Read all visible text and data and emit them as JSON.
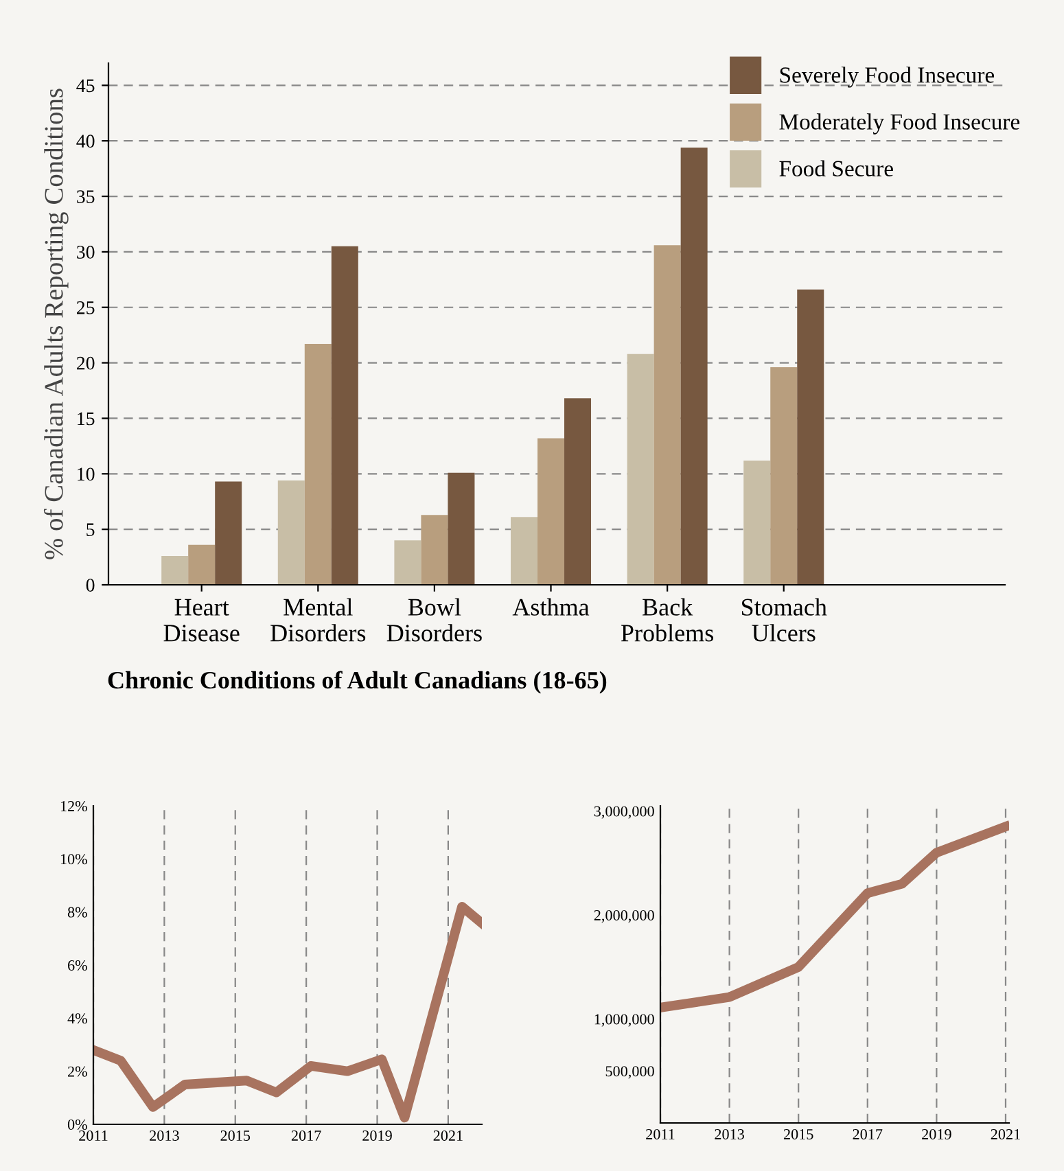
{
  "chart_data": [
    {
      "type": "bar",
      "title": "Chronic Conditions of Adult Canadians (18-65)",
      "ylabel": "% of Canadian Adults Reporting Conditions",
      "categories": [
        "Heart\nDisease",
        "Mental\nDisorders",
        "Bowl\nDisorders",
        "Asthma",
        "Back\nProblems",
        "Stomach\nUlcers"
      ],
      "series": [
        {
          "name": "Food Secure",
          "color": "#c8bea6",
          "values": [
            2.6,
            9.4,
            4.0,
            6.1,
            20.8,
            11.2
          ]
        },
        {
          "name": "Moderately Food Insecure",
          "color": "#b89e7e",
          "values": [
            3.6,
            21.7,
            6.3,
            13.2,
            30.6,
            19.6
          ]
        },
        {
          "name": "Severely Food Insecure",
          "color": "#775840",
          "values": [
            9.3,
            30.5,
            10.1,
            16.8,
            39.4,
            26.6
          ]
        }
      ],
      "ylim": [
        0,
        47
      ],
      "yticks": [
        0,
        5,
        10,
        15,
        20,
        25,
        30,
        35,
        40,
        45
      ],
      "grid": "y",
      "legend": "top right"
    },
    {
      "type": "line",
      "x": [
        2011,
        2011.77,
        2012.68,
        2013.58,
        2015.32,
        2016.16,
        2017.13,
        2018.16,
        2019.13,
        2019.77,
        2021.39,
        2021.93
      ],
      "series": [
        {
          "color": "#a8735f",
          "values": [
            2.8,
            2.4,
            0.65,
            1.5,
            1.65,
            1.2,
            2.2,
            2.0,
            2.45,
            0.25,
            8.2,
            7.6
          ]
        }
      ],
      "xlim": [
        2011,
        2021.95
      ],
      "xticks": [
        2011,
        2013,
        2015,
        2017,
        2019,
        2021
      ],
      "ylim": [
        0,
        12
      ],
      "yticks": [
        {
          "value": 0,
          "label": "0%"
        },
        {
          "value": 2,
          "label": "2%"
        },
        {
          "value": 4,
          "label": "4%"
        },
        {
          "value": 6,
          "label": "6%"
        },
        {
          "value": 8,
          "label": "8%"
        },
        {
          "value": 10,
          "label": "10%"
        },
        {
          "value": 12,
          "label": "12%"
        }
      ],
      "grid": "x",
      "marker": "none",
      "line_style": "solid"
    },
    {
      "type": "line",
      "x": [
        2011,
        2013,
        2015,
        2017,
        2018,
        2019,
        2021
      ],
      "series": [
        {
          "color": "#a8735f",
          "values": [
            1110000,
            1210000,
            1500000,
            2210000,
            2300000,
            2600000,
            2850000
          ]
        }
      ],
      "xlim": [
        2011,
        2021.1
      ],
      "xticks": [
        2011,
        2013,
        2015,
        2017,
        2019,
        2021
      ],
      "ylim": [
        0,
        3050000
      ],
      "yticks": [
        {
          "value": 500000,
          "label": "500,000"
        },
        {
          "value": 1000000,
          "label": "1,000,000"
        },
        {
          "value": 2000000,
          "label": "2,000,000"
        },
        {
          "value": 3000000,
          "label": "3,000,000"
        }
      ],
      "grid": "x",
      "marker": "none",
      "line_style": "solid"
    }
  ]
}
